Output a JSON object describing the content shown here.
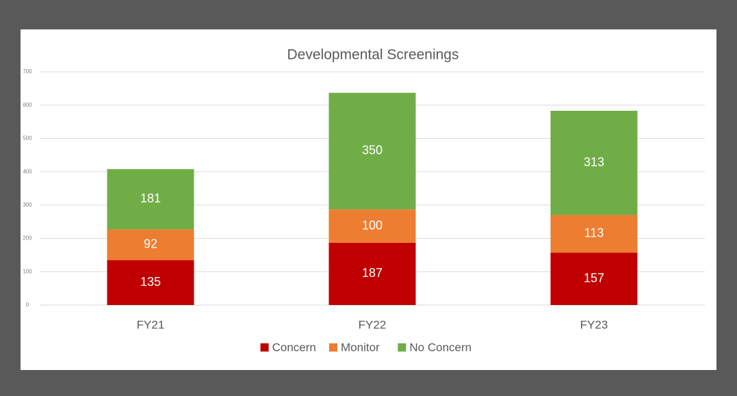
{
  "chart_data": {
    "type": "stacked_bar",
    "title": "Developmental Screenings",
    "categories": [
      "FY21",
      "FY22",
      "FY23"
    ],
    "series": [
      {
        "name": "Concern",
        "color": "#c00000",
        "values": [
          135,
          187,
          157
        ]
      },
      {
        "name": "Monitor",
        "color": "#ed7d31",
        "values": [
          92,
          100,
          113
        ]
      },
      {
        "name": "No Concern",
        "color": "#70ad47",
        "values": [
          181,
          350,
          313
        ]
      }
    ],
    "ylim": [
      0,
      700
    ],
    "yticks": [
      0,
      100,
      200,
      300,
      400,
      500,
      600,
      700
    ],
    "grid": true,
    "legend": "bottom"
  }
}
